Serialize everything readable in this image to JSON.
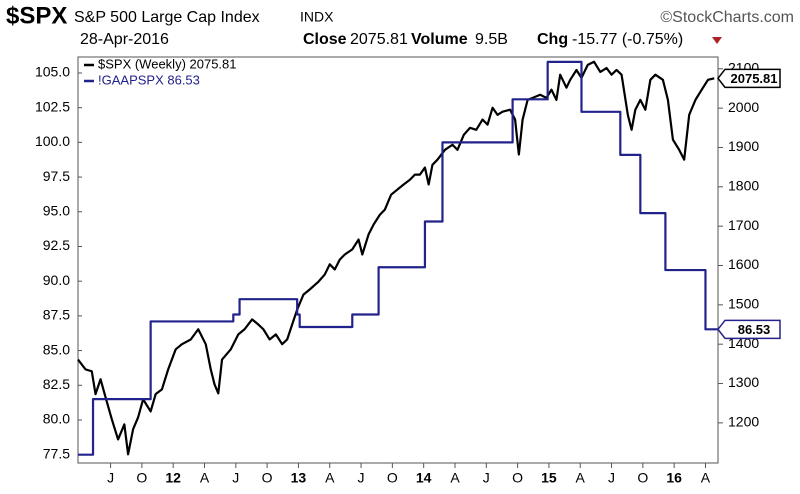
{
  "chart_data": {
    "type": "line",
    "title": "$SPX",
    "subtitle": "S&P 500 Large Cap Index",
    "exchange": "INDX",
    "source": "©StockCharts.com",
    "date": "28-Apr-2016",
    "stats": [
      {
        "label": "Close",
        "value": 2075.81
      },
      {
        "label": "Volume",
        "value": "9.5B"
      },
      {
        "label": "Chg",
        "value": "-15.77 (-0.75%)"
      }
    ],
    "legend": "upper left",
    "grid": false,
    "xlim": [
      2011.24,
      2016.35
    ],
    "xticks": [
      {
        "value": 2011.5,
        "label": "J"
      },
      {
        "value": 2011.75,
        "label": "O"
      },
      {
        "value": 2012,
        "label": "12"
      },
      {
        "value": 2012.25,
        "label": "A"
      },
      {
        "value": 2012.5,
        "label": "J"
      },
      {
        "value": 2012.75,
        "label": "O"
      },
      {
        "value": 2013,
        "label": "13"
      },
      {
        "value": 2013.25,
        "label": "A"
      },
      {
        "value": 2013.5,
        "label": "J"
      },
      {
        "value": 2013.75,
        "label": "O"
      },
      {
        "value": 2014,
        "label": "14"
      },
      {
        "value": 2014.25,
        "label": "A"
      },
      {
        "value": 2014.5,
        "label": "J"
      },
      {
        "value": 2014.75,
        "label": "O"
      },
      {
        "value": 2015,
        "label": "15"
      },
      {
        "value": 2015.25,
        "label": "A"
      },
      {
        "value": 2015.5,
        "label": "J"
      },
      {
        "value": 2015.75,
        "label": "O"
      },
      {
        "value": 2016,
        "label": "16"
      },
      {
        "value": 2016.25,
        "label": "A"
      }
    ],
    "ylim": [
      76.9,
      106.15
    ],
    "yticks": [
      77.5,
      {
        "value": 80,
        "label": "80.0"
      },
      82.5,
      {
        "value": 85,
        "label": "85.0"
      },
      87.5,
      {
        "value": 90,
        "label": "90.0"
      },
      92.5,
      {
        "value": 95,
        "label": "95.0"
      },
      97.5,
      {
        "value": 100,
        "label": "100.0"
      },
      102.5,
      {
        "value": 105,
        "label": "105.0"
      }
    ],
    "y2lim": [
      1098,
      2130
    ],
    "y2ticks": [
      1200,
      1300,
      1400,
      1500,
      1600,
      1700,
      1800,
      1900,
      2000,
      2100
    ],
    "series": [
      {
        "name": "$SPX (Weekly) 2075.81",
        "color": "#000000",
        "axis": "y2",
        "x": [
          2011.24,
          2011.3,
          2011.35,
          2011.38,
          2011.42,
          2011.46,
          2011.51,
          2011.56,
          2011.61,
          2011.64,
          2011.68,
          2011.72,
          2011.76,
          2011.82,
          2011.86,
          2011.91,
          2011.96,
          2012.02,
          2012.07,
          2012.14,
          2012.2,
          2012.26,
          2012.3,
          2012.33,
          2012.36,
          2012.39,
          2012.46,
          2012.52,
          2012.57,
          2012.63,
          2012.68,
          2012.72,
          2012.77,
          2012.82,
          2012.87,
          2012.91,
          2012.95,
          2012.99,
          2013.04,
          2013.09,
          2013.16,
          2013.21,
          2013.25,
          2013.29,
          2013.33,
          2013.37,
          2013.43,
          2013.48,
          2013.51,
          2013.56,
          2013.6,
          2013.65,
          2013.69,
          2013.74,
          2013.79,
          2013.84,
          2013.89,
          2013.93,
          2013.97,
          2014.01,
          2014.04,
          2014.07,
          2014.11,
          2014.17,
          2014.23,
          2014.27,
          2014.32,
          2014.37,
          2014.42,
          2014.47,
          2014.51,
          2014.55,
          2014.59,
          2014.63,
          2014.69,
          2014.73,
          2014.76,
          2014.79,
          2014.83,
          2014.87,
          2014.93,
          2014.98,
          2015.02,
          2015.06,
          2015.09,
          2015.14,
          2015.17,
          2015.22,
          2015.26,
          2015.31,
          2015.36,
          2015.41,
          2015.46,
          2015.5,
          2015.54,
          2015.58,
          2015.63,
          2015.66,
          2015.69,
          2015.73,
          2015.77,
          2015.81,
          2015.85,
          2015.91,
          2015.95,
          2015.99,
          2016.04,
          2016.08,
          2016.12,
          2016.17,
          2016.22,
          2016.27,
          2016.32
        ],
        "values": [
          1361,
          1336,
          1331,
          1273,
          1311,
          1265,
          1209,
          1158,
          1196,
          1120,
          1184,
          1214,
          1260,
          1229,
          1273,
          1285,
          1336,
          1387,
          1400,
          1412,
          1438,
          1400,
          1336,
          1298,
          1275,
          1361,
          1387,
          1425,
          1438,
          1463,
          1450,
          1438,
          1412,
          1425,
          1400,
          1412,
          1450,
          1488,
          1526,
          1539,
          1559,
          1577,
          1603,
          1590,
          1615,
          1628,
          1641,
          1666,
          1628,
          1679,
          1704,
          1729,
          1742,
          1780,
          1793,
          1806,
          1818,
          1831,
          1831,
          1849,
          1806,
          1856,
          1869,
          1894,
          1907,
          1894,
          1932,
          1950,
          1945,
          1971,
          1958,
          2001,
          1983,
          1991,
          1996,
          1971,
          1882,
          1971,
          2021,
          2026,
          2034,
          2026,
          2047,
          2021,
          2085,
          2052,
          2072,
          2097,
          2077,
          2110,
          2118,
          2092,
          2102,
          2085,
          2097,
          2085,
          1983,
          1945,
          1996,
          2021,
          1996,
          2072,
          2085,
          2072,
          2021,
          1920,
          1894,
          1869,
          1983,
          2021,
          2047,
          2072,
          2075.81
        ]
      },
      {
        "name": "!GAAPSPX 86.53",
        "color": "#22228c",
        "axis": "y",
        "drawstyle": "steps-post",
        "x": [
          2011.24,
          2011.36,
          2011.82,
          2012.48,
          2012.53,
          2012.99,
          2013.01,
          2013.43,
          2013.64,
          2014.01,
          2014.15,
          2014.71,
          2014.99,
          2015.26,
          2015.57,
          2015.73,
          2015.93,
          2016.25
        ],
        "values": [
          77.5,
          81.5,
          87.1,
          87.6,
          88.7,
          87.6,
          86.7,
          87.6,
          91.0,
          94.3,
          100.0,
          103.1,
          105.8,
          102.2,
          99.1,
          94.9,
          90.8,
          86.53
        ]
      }
    ]
  }
}
